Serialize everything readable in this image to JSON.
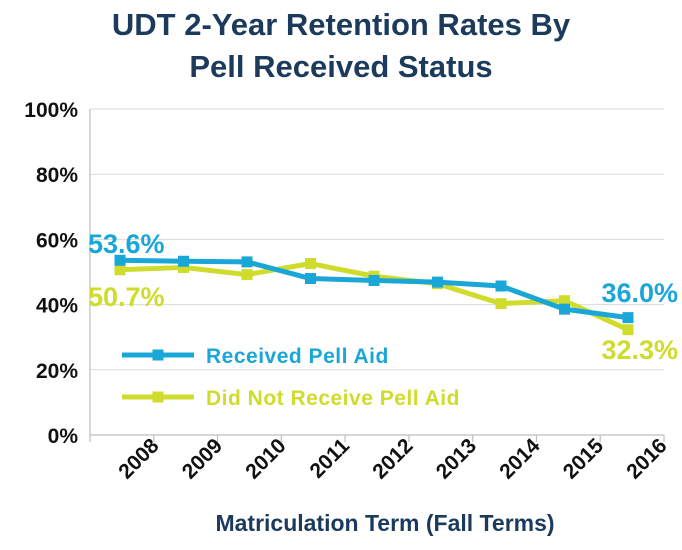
{
  "chart_data": {
    "type": "line",
    "title_lines": [
      "UDT 2-Year Retention Rates By",
      "Pell Received Status"
    ],
    "xlabel": "Matriculation Term (Fall Terms)",
    "ylabel": "",
    "categories": [
      "2008",
      "2009",
      "2010",
      "2011",
      "2012",
      "2013",
      "2014",
      "2015",
      "2016"
    ],
    "ylim": [
      0,
      100
    ],
    "yticks": [
      0,
      20,
      40,
      60,
      80,
      100
    ],
    "ytick_labels": [
      "0%",
      "20%",
      "40%",
      "60%",
      "80%",
      "100%"
    ],
    "grid": "horizontal",
    "legend_position": "bottom-left",
    "series": [
      {
        "name": "Received Pell Aid",
        "color": "#1aa7d8",
        "values": [
          53.6,
          53.3,
          53.1,
          48.0,
          47.4,
          46.9,
          45.7,
          38.6,
          36.0
        ],
        "point_labels": [
          {
            "index": 0,
            "text": "53.6%"
          },
          {
            "index": 8,
            "text": "36.0%"
          }
        ]
      },
      {
        "name": "Did Not Receive Pell Aid",
        "color": "#cfdc2b",
        "values": [
          50.7,
          51.4,
          49.2,
          52.6,
          48.7,
          46.4,
          40.3,
          41.2,
          32.3
        ],
        "point_labels": [
          {
            "index": 0,
            "text": "50.7%"
          },
          {
            "index": 8,
            "text": "32.3%"
          }
        ]
      }
    ]
  }
}
